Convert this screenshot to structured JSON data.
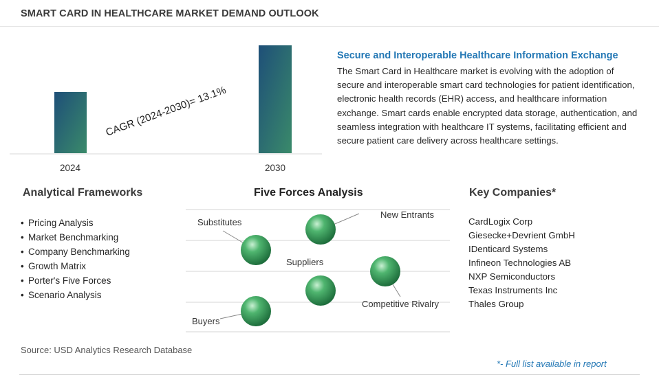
{
  "title": "SMART CARD IN HEALTHCARE MARKET DEMAND OUTLOOK",
  "chart_data": {
    "type": "bar",
    "categories": [
      "2024",
      "2030"
    ],
    "annotation": "CAGR (2024-2030)=  13.1%",
    "colors": [
      "#3a8a6a",
      "#1e4f78"
    ]
  },
  "description": {
    "heading": "Secure and Interoperable Healthcare Information Exchange",
    "body": "The Smart Card in Healthcare market is evolving with the adoption of secure and interoperable smart card technologies for patient identification, electronic health records (EHR) access, and healthcare information exchange. Smart cards enable encrypted data storage, authentication, and seamless integration with healthcare IT systems, facilitating efficient and secure patient care delivery across healthcare settings."
  },
  "frameworks": {
    "heading": "Analytical Frameworks",
    "items": [
      "Pricing Analysis",
      "Market Benchmarking",
      "Company Benchmarking",
      "Growth Matrix",
      "Porter's Five Forces",
      "Scenario Analysis"
    ]
  },
  "five_forces": {
    "heading": "Five Forces Analysis",
    "labels": {
      "substitutes": "Substitutes",
      "new_entrants": "New Entrants",
      "suppliers": "Suppliers",
      "competitive_rivalry": "Competitive Rivalry",
      "buyers": "Buyers"
    }
  },
  "companies": {
    "heading": "Key Companies*",
    "items": [
      "CardLogix Corp",
      "Giesecke+Devrient GmbH",
      "IDenticard Systems",
      "Infineon Technologies AB",
      "NXP Semiconductors",
      "Texas Instruments Inc",
      "Thales Group"
    ]
  },
  "source": "Source: USD Analytics Research Database",
  "footnote": "*- Full list available in report"
}
